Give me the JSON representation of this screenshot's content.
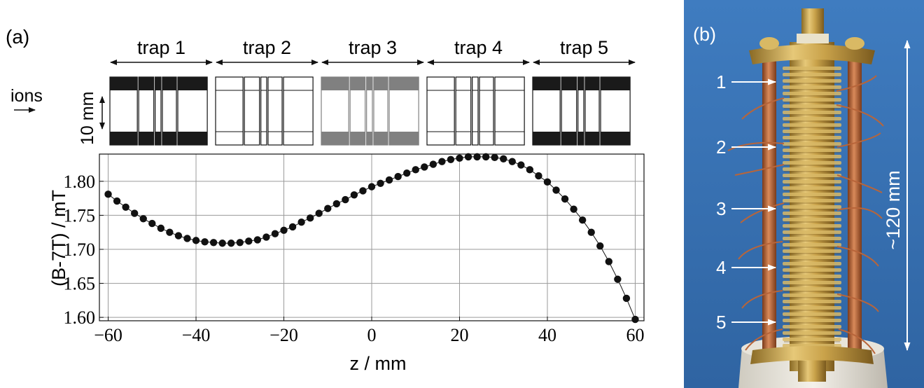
{
  "panel_a": {
    "label": "(a)",
    "ions_label": "ions",
    "scale_label": "10 mm",
    "traps": [
      {
        "label": "trap 1",
        "style": "dark"
      },
      {
        "label": "trap 2",
        "style": "light"
      },
      {
        "label": "trap 3",
        "style": "grey"
      },
      {
        "label": "trap 4",
        "style": "light"
      },
      {
        "label": "trap 5",
        "style": "dark"
      }
    ]
  },
  "panel_b": {
    "label": "(b)",
    "marks": [
      "1",
      "2",
      "3",
      "4",
      "5"
    ],
    "length_label": "~120 mm"
  },
  "colors": {
    "dark": "#1a1a1a",
    "grey": "#808080",
    "photo_bg": "#3d78b8",
    "gold": "#c9a24a",
    "copper": "#b8653a"
  },
  "chart_data": {
    "type": "scatter",
    "xlabel": "z / mm",
    "ylabel": "(B-7T) / mT",
    "xlim": [
      -62,
      62
    ],
    "ylim": [
      1.595,
      1.84
    ],
    "xticks": [
      -60,
      -40,
      -20,
      0,
      20,
      40,
      60
    ],
    "xtick_labels": [
      "−60",
      "−40",
      "−20",
      "0",
      "20",
      "40",
      "60"
    ],
    "yticks": [
      1.6,
      1.65,
      1.7,
      1.75,
      1.8
    ],
    "ytick_labels": [
      "1.60",
      "1.65",
      "1.70",
      "1.75",
      "1.80"
    ],
    "grid": true,
    "connected": true,
    "x": [
      -60,
      -58,
      -56,
      -54,
      -52,
      -50,
      -48,
      -46,
      -44,
      -42,
      -40,
      -38,
      -36,
      -34,
      -32,
      -30,
      -28,
      -26,
      -24,
      -22,
      -20,
      -18,
      -16,
      -14,
      -12,
      -10,
      -8,
      -6,
      -4,
      -2,
      0,
      2,
      4,
      6,
      8,
      10,
      12,
      14,
      16,
      18,
      20,
      22,
      24,
      26,
      28,
      30,
      32,
      34,
      36,
      38,
      40,
      42,
      44,
      46,
      48,
      50,
      52,
      54,
      56,
      58,
      60
    ],
    "y": [
      1.781,
      1.771,
      1.762,
      1.753,
      1.745,
      1.738,
      1.731,
      1.725,
      1.72,
      1.716,
      1.713,
      1.711,
      1.71,
      1.709,
      1.709,
      1.71,
      1.712,
      1.714,
      1.718,
      1.723,
      1.728,
      1.733,
      1.74,
      1.746,
      1.753,
      1.76,
      1.767,
      1.773,
      1.78,
      1.786,
      1.792,
      1.797,
      1.802,
      1.807,
      1.812,
      1.817,
      1.821,
      1.825,
      1.829,
      1.832,
      1.834,
      1.836,
      1.836,
      1.836,
      1.835,
      1.833,
      1.829,
      1.824,
      1.817,
      1.808,
      1.799,
      1.787,
      1.774,
      1.759,
      1.743,
      1.725,
      1.705,
      1.682,
      1.656,
      1.628,
      1.597
    ]
  }
}
